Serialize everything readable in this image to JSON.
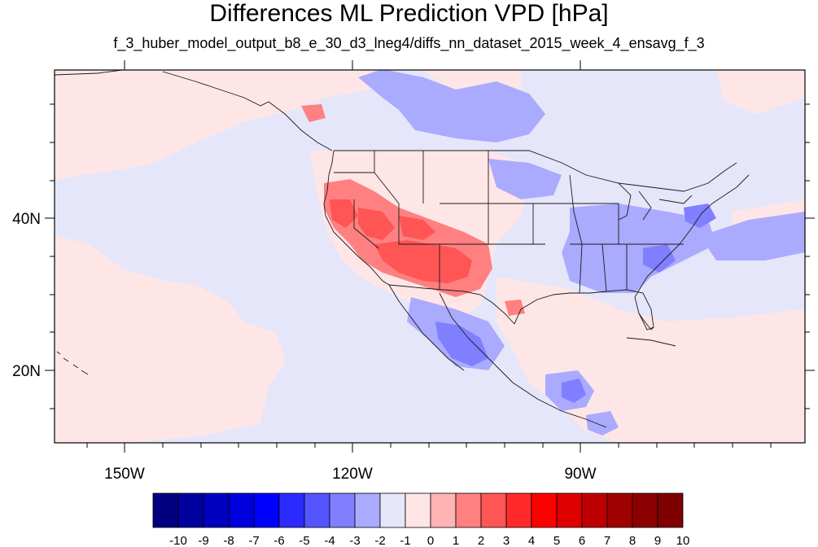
{
  "figure": {
    "title": "Differences ML Prediction VPD [hPa]",
    "subtitle": "f_3_huber_model_output_b8_e_30_d3_lneg4/diffs_nn_dataset_2015_week_4_ensavg_f_3"
  },
  "map": {
    "region": "Eastern Pacific and contiguous United States",
    "background_color": "#e6e6fa",
    "lat_labels": [
      "40N",
      "20N"
    ],
    "lon_labels": [
      "150W",
      "120W",
      "90W"
    ]
  },
  "colorbar": {
    "tick_labels": [
      "-10",
      "-9",
      "-8",
      "-7",
      "-6",
      "-5",
      "-4",
      "-3",
      "-2",
      "-1",
      "0",
      "1",
      "2",
      "3",
      "4",
      "5",
      "6",
      "7",
      "8",
      "9",
      "10"
    ],
    "colors": [
      "#00007f",
      "#00009f",
      "#0000bf",
      "#0000df",
      "#0000ff",
      "#2a2aff",
      "#5555ff",
      "#7f7fff",
      "#aaaaff",
      "#e6e6fa",
      "#ffe6e6",
      "#ffb4b4",
      "#ff8080",
      "#ff5555",
      "#ff2a2a",
      "#ff0000",
      "#df0000",
      "#bf0000",
      "#9f0000",
      "#8b0000",
      "#7f0000"
    ]
  }
}
